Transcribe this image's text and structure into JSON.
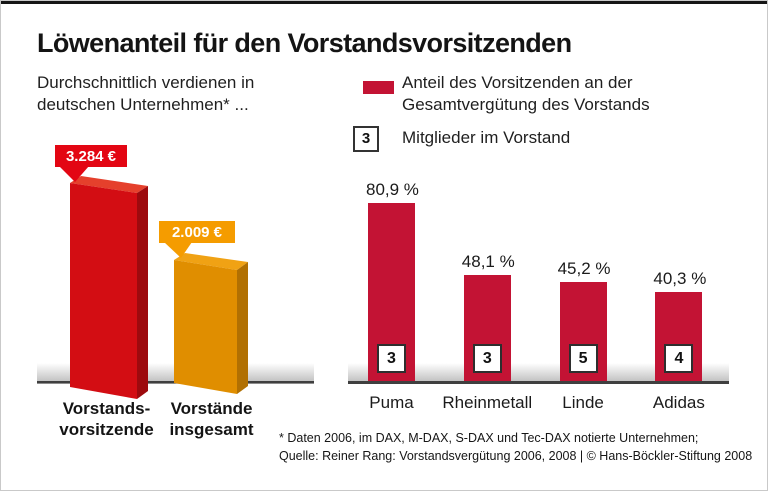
{
  "title": "Löwenanteil für den Vorstandsvorsitzenden",
  "intro": "Durchschnittlich verdienen in\ndeutschen Unternehmen* ...",
  "legend": {
    "share_label": "Anteil des Vorsitzenden an der\nGesamtvergütung des Vorstands",
    "swatch_color": "#c31334",
    "members_symbol": "3",
    "members_label": "Mitglieder im Vorstand"
  },
  "chart_data": [
    {
      "type": "bar",
      "title": "Durchschnittlich verdienen in deutschen Unternehmen* ...",
      "categories": [
        "Vorstands-\nvorsitzende",
        "Vorstände\ninsgesamt"
      ],
      "values": [
        3284,
        2009
      ],
      "unit": "€",
      "value_labels": [
        "3.284 €",
        "2.009 €"
      ],
      "bar_colors": [
        "#d30d13",
        "#e08e00"
      ],
      "tag_colors": [
        "#e30613",
        "#f59c00"
      ],
      "style": "3d-perspective-bars"
    },
    {
      "type": "bar",
      "series_name": "Anteil des Vorsitzenden an der Gesamtvergütung des Vorstands",
      "categories": [
        "Puma",
        "Rheinmetall",
        "Linde",
        "Adidas"
      ],
      "values": [
        80.9,
        48.1,
        45.2,
        40.3
      ],
      "value_labels": [
        "80,9 %",
        "48,1 %",
        "45,2 %",
        "40,3 %"
      ],
      "board_members": [
        "3",
        "3",
        "5",
        "4"
      ],
      "unit": "%",
      "ylim": [
        0,
        100
      ],
      "bar_color": "#c31334",
      "grid": false,
      "legend_position": "top"
    }
  ],
  "footnote": "* Daten 2006, im DAX, M-DAX, S-DAX und Tec-DAX notierte Unternehmen;\nQuelle: Reiner Rang: Vorstandsvergütung 2006, 2008  | © Hans-Böckler-Stiftung 2008"
}
